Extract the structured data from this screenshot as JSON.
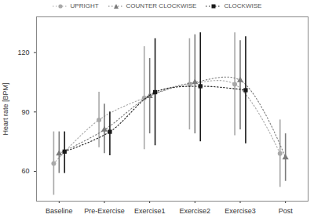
{
  "chart_data": {
    "type": "line",
    "y_label": "Heart rate [BPM]",
    "categories": [
      "Baseline",
      "Pre-Exercise",
      "Exercise1",
      "Exercise2",
      "Exercise3",
      "Post"
    ],
    "ylim": [
      45,
      138
    ],
    "yticks": [
      60,
      90,
      120
    ],
    "grid": false,
    "legend": "top",
    "line_style": "dotted",
    "series": [
      {
        "name": "UPRIGHT",
        "color": "#a8a8a8",
        "marker": "circle",
        "values": [
          64,
          86,
          97,
          104,
          104,
          69
        ],
        "error_low": [
          48,
          72,
          71,
          81,
          78,
          52
        ],
        "error_high": [
          80,
          100,
          123,
          127,
          130,
          86
        ]
      },
      {
        "name": "COUNTER CLOCKWISE",
        "color": "#7a7a7a",
        "marker": "triangle",
        "values": [
          69,
          81,
          98,
          105,
          106,
          67
        ],
        "error_low": [
          59,
          69,
          79,
          79,
          81,
          55
        ],
        "error_high": [
          80,
          94,
          117,
          129,
          126,
          79
        ]
      },
      {
        "name": "CLOCKWISE",
        "color": "#1a1a1a",
        "marker": "square",
        "values": [
          70,
          80,
          100,
          103,
          101,
          null
        ],
        "error_low": [
          59,
          68,
          73,
          75,
          74,
          null
        ],
        "error_high": [
          80,
          90,
          127,
          130,
          128,
          null
        ]
      }
    ]
  }
}
